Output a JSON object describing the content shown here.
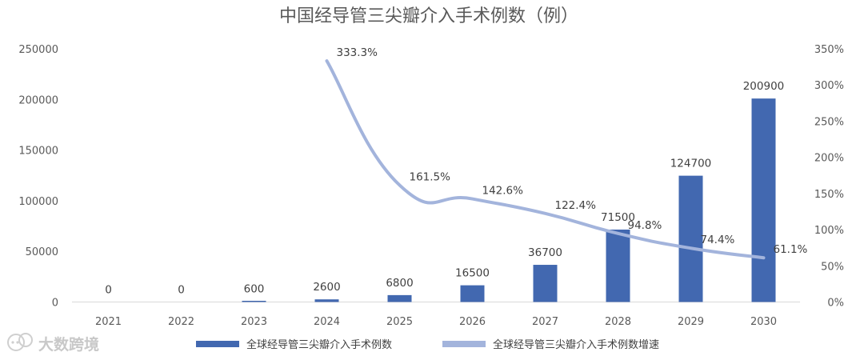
{
  "chart_data": {
    "type": "bar",
    "title": "中国经导管三尖瓣介入手术例数（例）",
    "categories": [
      "2021",
      "2022",
      "2023",
      "2024",
      "2025",
      "2026",
      "2027",
      "2028",
      "2029",
      "2030"
    ],
    "series": [
      {
        "name": "全球经导管三尖瓣介入手术例数",
        "type": "bar",
        "axis": "left",
        "color": "#4268b0",
        "values": [
          0,
          0,
          600,
          2600,
          6800,
          16500,
          36700,
          71500,
          124700,
          200900
        ],
        "labels": [
          "0",
          "0",
          "600",
          "2600",
          "6800",
          "16500",
          "36700",
          "71500",
          "124700",
          "200900"
        ]
      },
      {
        "name": "全球经导管三尖瓣介入手术例数增速",
        "type": "line",
        "axis": "right",
        "color": "#a3b4dc",
        "values": [
          null,
          null,
          null,
          333.3,
          161.5,
          142.6,
          122.4,
          94.8,
          74.4,
          61.1
        ],
        "labels": [
          "",
          "",
          "",
          "333.3%",
          "161.5%",
          "142.6%",
          "122.4%",
          "94.8%",
          "74.4%",
          "61.1%"
        ]
      }
    ],
    "y_left": {
      "min": 0,
      "max": 250000,
      "ticks": [
        "0",
        "50000",
        "100000",
        "150000",
        "200000",
        "250000"
      ]
    },
    "y_right": {
      "min": 0,
      "max": 350,
      "ticks": [
        "0%",
        "50%",
        "100%",
        "150%",
        "200%",
        "250%",
        "300%",
        "350%"
      ]
    },
    "grid": false,
    "legend_position": "bottom"
  },
  "watermark": {
    "text": "大数跨境",
    "icon": "chat-bubble-logo"
  }
}
